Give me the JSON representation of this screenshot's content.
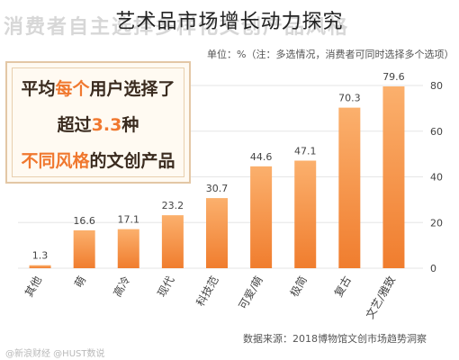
{
  "header": {
    "overlay_title": "艺术品市场增长动力探究",
    "background_heading": "消费者自主选择多样化文创产品风格",
    "unit_note": "单位：%（注：多选情况，消费者可同时选择多个选项）"
  },
  "promo": {
    "line1_a": "平均",
    "line1_hl": "每个",
    "line1_b": "用户选择了",
    "line2_a": "超过",
    "line2_hl": "3.3",
    "line2_b": "种",
    "line3_hl": "不同风格",
    "line3_b": "的文创产品"
  },
  "source": "数据来源：2018博物馆文创市场趋势洞察",
  "watermark": "@新浪财经 @HUST数说",
  "colors": {
    "bar_top": "#fbb06d",
    "bar_bottom": "#f07d2e",
    "grid": "#e6e6e6",
    "axis_text": "#444444"
  },
  "chart_data": {
    "type": "bar",
    "title": "",
    "xlabel": "",
    "ylabel": "",
    "categories": [
      "其他",
      "萌",
      "高冷",
      "现代",
      "科技范",
      "可爱/萌",
      "极简",
      "复古",
      "文艺/雅致"
    ],
    "values": [
      1.3,
      16.6,
      17.1,
      23.2,
      30.7,
      44.6,
      47.1,
      70.3,
      79.6
    ],
    "value_labels": [
      "1.3",
      "16.6",
      "17.1",
      "23.2",
      "30.7",
      "44.6",
      "47.1",
      "70.3",
      "79.6"
    ],
    "ylim": [
      0,
      80
    ],
    "yticks": [
      "0",
      "20",
      "40",
      "60",
      "80"
    ],
    "yaxis_side": "right",
    "grid": true,
    "legend": "none"
  }
}
